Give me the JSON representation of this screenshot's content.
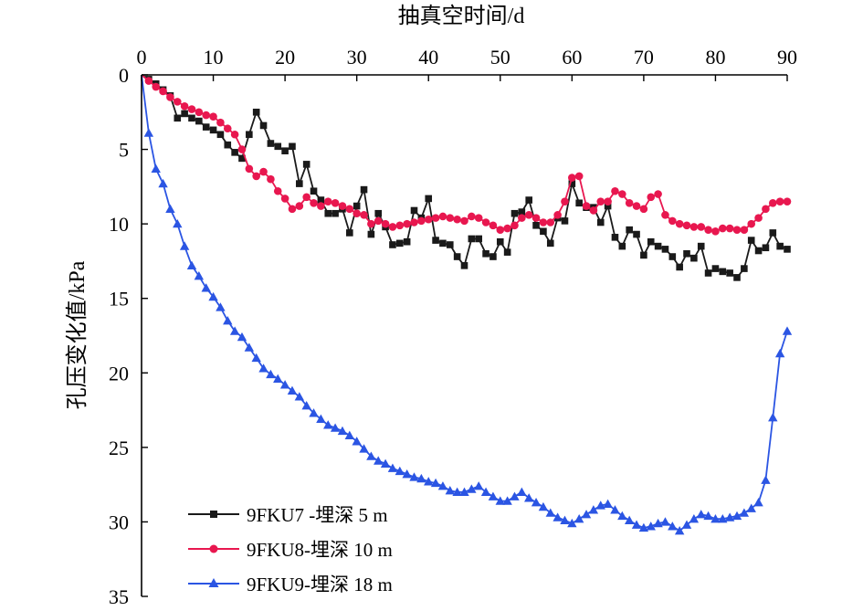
{
  "chart_data": {
    "type": "line",
    "title": "",
    "xlabel": "抽真空时间/d",
    "ylabel": "孔压变化值/kPa",
    "xlim": [
      0,
      90
    ],
    "ylim": [
      0,
      35
    ],
    "y_inverted": true,
    "x_axis_position": "top",
    "x_ticks": [
      "0",
      "10",
      "20",
      "30",
      "40",
      "50",
      "60",
      "70",
      "80",
      "90"
    ],
    "y_ticks": [
      "0",
      "5",
      "10",
      "15",
      "20",
      "25",
      "30",
      "35"
    ],
    "grid": false,
    "legend_position": "bottom-left",
    "series": [
      {
        "name": "9FKU7 -埋深 5 m",
        "color": "#1a1a1a",
        "marker": "square",
        "x": [
          0,
          1,
          2,
          3,
          4,
          5,
          6,
          7,
          8,
          9,
          10,
          11,
          12,
          13,
          14,
          15,
          16,
          17,
          18,
          19,
          20,
          21,
          22,
          23,
          24,
          25,
          26,
          27,
          28,
          29,
          30,
          31,
          32,
          33,
          34,
          35,
          36,
          37,
          38,
          39,
          40,
          41,
          42,
          43,
          44,
          45,
          46,
          47,
          48,
          49,
          50,
          51,
          52,
          53,
          54,
          55,
          56,
          57,
          58,
          59,
          60,
          61,
          62,
          63,
          64,
          65,
          66,
          67,
          68,
          69,
          70,
          71,
          72,
          73,
          74,
          75,
          76,
          77,
          78,
          79,
          80,
          81,
          82,
          83,
          84,
          85,
          86,
          87,
          88,
          89,
          90
        ],
        "y": [
          0,
          0.3,
          0.6,
          1.0,
          1.4,
          2.9,
          2.6,
          2.9,
          3.1,
          3.5,
          3.7,
          4.0,
          4.7,
          5.2,
          5.6,
          4.0,
          2.5,
          3.4,
          4.6,
          4.8,
          5.1,
          4.8,
          7.3,
          6.0,
          7.8,
          8.4,
          9.3,
          9.3,
          9.0,
          10.6,
          8.8,
          7.7,
          10.7,
          9.3,
          10.2,
          11.4,
          11.3,
          11.2,
          9.1,
          9.6,
          8.3,
          11.1,
          11.3,
          11.4,
          12.2,
          12.8,
          11.0,
          11.0,
          12.0,
          12.2,
          11.2,
          11.9,
          9.3,
          9.2,
          8.4,
          10.1,
          10.5,
          11.3,
          9.6,
          9.8,
          7.3,
          8.6,
          8.9,
          8.9,
          9.9,
          8.8,
          10.9,
          11.5,
          10.4,
          10.7,
          12.1,
          11.2,
          11.5,
          11.7,
          12.2,
          12.9,
          12.0,
          12.3,
          11.5,
          13.3,
          13.0,
          13.2,
          13.3,
          13.6,
          13.0,
          11.1,
          11.8,
          11.6,
          10.6,
          11.5,
          11.7
        ]
      },
      {
        "name": "9FKU8-埋深 10 m",
        "color": "#e8174f",
        "marker": "circle",
        "x": [
          0,
          1,
          2,
          3,
          4,
          5,
          6,
          7,
          8,
          9,
          10,
          11,
          12,
          13,
          14,
          15,
          16,
          17,
          18,
          19,
          20,
          21,
          22,
          23,
          24,
          25,
          26,
          27,
          28,
          29,
          30,
          31,
          32,
          33,
          34,
          35,
          36,
          37,
          38,
          39,
          40,
          41,
          42,
          43,
          44,
          45,
          46,
          47,
          48,
          49,
          50,
          51,
          52,
          53,
          54,
          55,
          56,
          57,
          58,
          59,
          60,
          61,
          62,
          63,
          64,
          65,
          66,
          67,
          68,
          69,
          70,
          71,
          72,
          73,
          74,
          75,
          76,
          77,
          78,
          79,
          80,
          81,
          82,
          83,
          84,
          85,
          86,
          87,
          88,
          89,
          90
        ],
        "y": [
          0,
          0.4,
          0.8,
          1.1,
          1.5,
          1.8,
          2.1,
          2.3,
          2.5,
          2.7,
          2.8,
          3.2,
          3.6,
          4.0,
          5.0,
          6.3,
          6.8,
          6.5,
          7.0,
          7.8,
          8.3,
          9.0,
          8.8,
          8.2,
          8.6,
          8.8,
          8.5,
          8.6,
          8.8,
          9.0,
          9.3,
          9.4,
          10.0,
          9.8,
          10.0,
          10.2,
          10.1,
          10.0,
          9.9,
          9.8,
          9.7,
          9.6,
          9.5,
          9.6,
          9.7,
          9.8,
          9.5,
          9.6,
          9.9,
          10.1,
          10.4,
          10.3,
          10.1,
          9.6,
          9.4,
          9.6,
          9.9,
          9.9,
          9.4,
          8.5,
          6.9,
          6.8,
          8.8,
          9.1,
          8.5,
          8.5,
          7.8,
          8.0,
          8.6,
          8.8,
          9.0,
          8.2,
          8.0,
          9.4,
          9.8,
          10.0,
          10.1,
          10.2,
          10.2,
          10.4,
          10.5,
          10.3,
          10.3,
          10.4,
          10.4,
          10.0,
          9.6,
          9.0,
          8.6,
          8.5,
          8.5
        ]
      },
      {
        "name": "9FKU9-埋深 18 m",
        "color": "#2b55e3",
        "marker": "triangle",
        "x": [
          0,
          1,
          2,
          3,
          4,
          5,
          6,
          7,
          8,
          9,
          10,
          11,
          12,
          13,
          14,
          15,
          16,
          17,
          18,
          19,
          20,
          21,
          22,
          23,
          24,
          25,
          26,
          27,
          28,
          29,
          30,
          31,
          32,
          33,
          34,
          35,
          36,
          37,
          38,
          39,
          40,
          41,
          42,
          43,
          44,
          45,
          46,
          47,
          48,
          49,
          50,
          51,
          52,
          53,
          54,
          55,
          56,
          57,
          58,
          59,
          60,
          61,
          62,
          63,
          64,
          65,
          66,
          67,
          68,
          69,
          70,
          71,
          72,
          73,
          74,
          75,
          76,
          77,
          78,
          79,
          80,
          81,
          82,
          83,
          84,
          85,
          86,
          87,
          88,
          89,
          90
        ],
        "y": [
          0,
          3.9,
          6.3,
          7.3,
          9.0,
          10.0,
          11.5,
          12.8,
          13.5,
          14.3,
          14.9,
          15.6,
          16.5,
          17.2,
          17.6,
          18.3,
          19.0,
          19.7,
          20.1,
          20.4,
          20.8,
          21.2,
          21.6,
          22.2,
          22.7,
          23.1,
          23.5,
          23.7,
          23.9,
          24.2,
          24.6,
          25.1,
          25.6,
          25.9,
          26.1,
          26.4,
          26.6,
          26.8,
          27.0,
          27.1,
          27.3,
          27.4,
          27.6,
          27.9,
          28.0,
          28.0,
          27.8,
          27.6,
          28.0,
          28.3,
          28.6,
          28.6,
          28.3,
          28.0,
          28.4,
          28.7,
          29.0,
          29.4,
          29.7,
          29.9,
          30.1,
          29.8,
          29.5,
          29.2,
          28.9,
          28.8,
          29.2,
          29.6,
          29.9,
          30.2,
          30.4,
          30.3,
          30.1,
          30.0,
          30.3,
          30.6,
          30.2,
          29.8,
          29.5,
          29.6,
          29.8,
          29.8,
          29.7,
          29.6,
          29.4,
          29.1,
          28.7,
          27.2,
          23.0,
          18.7,
          17.2
        ]
      }
    ]
  }
}
